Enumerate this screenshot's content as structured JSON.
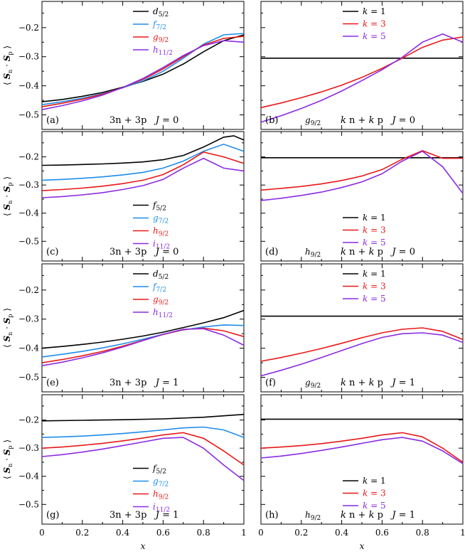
{
  "colors": {
    "black": "#000000",
    "blue": "#1f8ceb",
    "red": "#e81818",
    "purple": "#8a2be2"
  },
  "x_axis_label": "x",
  "y_axis_label": "⟨ S_n · S_p ⟩",
  "x_ticks": [
    "0",
    "0.2",
    "0.4",
    "0.6",
    "0.8",
    "1"
  ],
  "chart_data": [
    {
      "type": "line",
      "panel": "(a)",
      "annotation": "3n + 3p   J = 0",
      "ylim": [
        -0.55,
        -0.11
      ],
      "yticks": [
        "-0.2",
        "-0.3",
        "-0.4",
        "-0.5"
      ],
      "xlim": [
        0,
        1
      ],
      "legend": "top-right",
      "series": [
        {
          "name": "d5/2",
          "color": "black",
          "x": [
            0,
            0.1,
            0.2,
            0.3,
            0.4,
            0.5,
            0.6,
            0.7,
            0.8,
            0.9,
            1
          ],
          "y": [
            -0.455,
            -0.447,
            -0.436,
            -0.423,
            -0.405,
            -0.385,
            -0.36,
            -0.325,
            -0.283,
            -0.245,
            -0.225
          ]
        },
        {
          "name": "f7/2",
          "color": "blue",
          "x": [
            0,
            0.1,
            0.2,
            0.3,
            0.4,
            0.5,
            0.6,
            0.7,
            0.8,
            0.9,
            1
          ],
          "y": [
            -0.465,
            -0.455,
            -0.443,
            -0.427,
            -0.407,
            -0.383,
            -0.35,
            -0.305,
            -0.257,
            -0.225,
            -0.22
          ]
        },
        {
          "name": "g9/2",
          "color": "red",
          "x": [
            0,
            0.1,
            0.2,
            0.3,
            0.4,
            0.5,
            0.6,
            0.7,
            0.8,
            0.9,
            1
          ],
          "y": [
            -0.472,
            -0.46,
            -0.446,
            -0.429,
            -0.406,
            -0.378,
            -0.342,
            -0.3,
            -0.26,
            -0.237,
            -0.23
          ]
        },
        {
          "name": "h11/2",
          "color": "purple",
          "x": [
            0,
            0.1,
            0.2,
            0.3,
            0.4,
            0.5,
            0.6,
            0.7,
            0.8,
            0.9,
            1
          ],
          "y": [
            -0.482,
            -0.468,
            -0.452,
            -0.432,
            -0.406,
            -0.375,
            -0.337,
            -0.296,
            -0.262,
            -0.245,
            -0.25
          ]
        }
      ]
    },
    {
      "type": "line",
      "panel": "(b)",
      "orbital": "g9/2",
      "annotation": "k n + k p   J = 0",
      "ylim": [
        -0.55,
        -0.11
      ],
      "yticks": [
        "-0.2",
        "-0.3",
        "-0.4",
        "-0.5"
      ],
      "xlim": [
        0,
        1
      ],
      "legend": "top-right",
      "series": [
        {
          "name": "k = 1",
          "color": "black",
          "x": [
            0,
            0.2,
            0.4,
            0.6,
            0.8,
            1
          ],
          "y": [
            -0.305,
            -0.305,
            -0.305,
            -0.305,
            -0.305,
            -0.305
          ]
        },
        {
          "name": "k = 3",
          "color": "red",
          "x": [
            0,
            0.1,
            0.2,
            0.3,
            0.4,
            0.5,
            0.6,
            0.7,
            0.8,
            0.9,
            1
          ],
          "y": [
            -0.475,
            -0.459,
            -0.441,
            -0.421,
            -0.398,
            -0.371,
            -0.34,
            -0.305,
            -0.268,
            -0.243,
            -0.232
          ]
        },
        {
          "name": "k = 5",
          "color": "purple",
          "x": [
            0,
            0.1,
            0.2,
            0.3,
            0.4,
            0.5,
            0.6,
            0.7,
            0.8,
            0.9,
            1
          ],
          "y": [
            -0.525,
            -0.503,
            -0.478,
            -0.45,
            -0.418,
            -0.382,
            -0.345,
            -0.302,
            -0.25,
            -0.222,
            -0.25
          ]
        }
      ]
    },
    {
      "type": "line",
      "panel": "(c)",
      "annotation": "3n + 3p   J = 0",
      "ylim": [
        -0.57,
        -0.11
      ],
      "yticks": [
        "-0.2",
        "-0.3",
        "-0.4",
        "-0.5"
      ],
      "xlim": [
        0,
        1
      ],
      "legend": "bottom-center",
      "series": [
        {
          "name": "f5/2",
          "color": "black",
          "x": [
            0,
            0.1,
            0.2,
            0.3,
            0.4,
            0.5,
            0.6,
            0.7,
            0.8,
            0.9,
            0.95,
            1
          ],
          "y": [
            -0.23,
            -0.229,
            -0.227,
            -0.225,
            -0.222,
            -0.218,
            -0.21,
            -0.195,
            -0.165,
            -0.13,
            -0.125,
            -0.14
          ]
        },
        {
          "name": "g7/2",
          "color": "blue",
          "x": [
            0,
            0.1,
            0.2,
            0.3,
            0.4,
            0.5,
            0.6,
            0.7,
            0.8,
            0.9,
            1
          ],
          "y": [
            -0.283,
            -0.28,
            -0.276,
            -0.271,
            -0.264,
            -0.255,
            -0.24,
            -0.215,
            -0.18,
            -0.155,
            -0.18
          ]
        },
        {
          "name": "h9/2",
          "color": "red",
          "x": [
            0,
            0.1,
            0.2,
            0.3,
            0.4,
            0.5,
            0.6,
            0.7,
            0.8,
            0.9,
            1
          ],
          "y": [
            -0.32,
            -0.316,
            -0.311,
            -0.304,
            -0.295,
            -0.283,
            -0.263,
            -0.228,
            -0.183,
            -0.2,
            -0.223
          ]
        },
        {
          "name": "i11/2",
          "color": "purple",
          "x": [
            0,
            0.1,
            0.2,
            0.3,
            0.4,
            0.5,
            0.6,
            0.7,
            0.8,
            0.9,
            1
          ],
          "y": [
            -0.345,
            -0.341,
            -0.335,
            -0.327,
            -0.316,
            -0.302,
            -0.28,
            -0.24,
            -0.205,
            -0.24,
            -0.25
          ]
        }
      ]
    },
    {
      "type": "line",
      "panel": "(d)",
      "orbital": "h9/2",
      "annotation": "k n + k p   J = 0",
      "ylim": [
        -0.57,
        -0.11
      ],
      "yticks": [
        "-0.2",
        "-0.3",
        "-0.4",
        "-0.5"
      ],
      "xlim": [
        0,
        1
      ],
      "legend": "bottom-center",
      "series": [
        {
          "name": "k = 1",
          "color": "black",
          "x": [
            0,
            0.2,
            0.4,
            0.6,
            0.8,
            1
          ],
          "y": [
            -0.203,
            -0.203,
            -0.203,
            -0.203,
            -0.203,
            -0.203
          ]
        },
        {
          "name": "k = 3",
          "color": "red",
          "x": [
            0,
            0.1,
            0.2,
            0.3,
            0.4,
            0.5,
            0.6,
            0.7,
            0.8,
            0.9,
            1
          ],
          "y": [
            -0.318,
            -0.312,
            -0.305,
            -0.296,
            -0.284,
            -0.268,
            -0.245,
            -0.208,
            -0.178,
            -0.205,
            -0.205
          ]
        },
        {
          "name": "k = 5",
          "color": "purple",
          "x": [
            0,
            0.1,
            0.2,
            0.3,
            0.4,
            0.5,
            0.6,
            0.7,
            0.8,
            0.9,
            1
          ],
          "y": [
            -0.355,
            -0.347,
            -0.337,
            -0.325,
            -0.309,
            -0.289,
            -0.26,
            -0.215,
            -0.18,
            -0.235,
            -0.33
          ]
        }
      ]
    },
    {
      "type": "line",
      "panel": "(e)",
      "annotation": "3n + 3p   J = 1",
      "ylim": [
        -0.55,
        -0.11
      ],
      "yticks": [
        "-0.2",
        "-0.3",
        "-0.4",
        "-0.5"
      ],
      "xlim": [
        0,
        1
      ],
      "legend": "top-right",
      "series": [
        {
          "name": "d5/2",
          "color": "black",
          "x": [
            0,
            0.1,
            0.2,
            0.3,
            0.4,
            0.5,
            0.6,
            0.7,
            0.8,
            0.9,
            1
          ],
          "y": [
            -0.4,
            -0.394,
            -0.387,
            -0.379,
            -0.369,
            -0.358,
            -0.345,
            -0.329,
            -0.313,
            -0.295,
            -0.27
          ]
        },
        {
          "name": "f7/2",
          "color": "blue",
          "x": [
            0,
            0.1,
            0.2,
            0.3,
            0.4,
            0.5,
            0.6,
            0.7,
            0.8,
            0.9,
            1
          ],
          "y": [
            -0.43,
            -0.421,
            -0.411,
            -0.399,
            -0.385,
            -0.369,
            -0.352,
            -0.337,
            -0.327,
            -0.32,
            -0.322
          ]
        },
        {
          "name": "g9/2",
          "color": "red",
          "x": [
            0,
            0.1,
            0.2,
            0.3,
            0.4,
            0.5,
            0.6,
            0.7,
            0.8,
            0.9,
            1
          ],
          "y": [
            -0.45,
            -0.439,
            -0.426,
            -0.411,
            -0.393,
            -0.373,
            -0.353,
            -0.336,
            -0.331,
            -0.34,
            -0.36
          ]
        },
        {
          "name": "h11/2",
          "color": "purple",
          "x": [
            0,
            0.1,
            0.2,
            0.3,
            0.4,
            0.5,
            0.6,
            0.7,
            0.8,
            0.9,
            1
          ],
          "y": [
            -0.46,
            -0.448,
            -0.433,
            -0.416,
            -0.396,
            -0.374,
            -0.352,
            -0.335,
            -0.333,
            -0.355,
            -0.39
          ]
        }
      ]
    },
    {
      "type": "line",
      "panel": "(f)",
      "orbital": "g9/2",
      "annotation": "k n + k p   J = 1",
      "ylim": [
        -0.55,
        -0.11
      ],
      "yticks": [
        "-0.2",
        "-0.3",
        "-0.4",
        "-0.5"
      ],
      "xlim": [
        0,
        1
      ],
      "legend": "top-right",
      "series": [
        {
          "name": "k = 1",
          "color": "black",
          "x": [
            0,
            0.2,
            0.4,
            0.6,
            0.8,
            1
          ],
          "y": [
            -0.29,
            -0.29,
            -0.29,
            -0.29,
            -0.29,
            -0.29
          ]
        },
        {
          "name": "k = 3",
          "color": "red",
          "x": [
            0,
            0.1,
            0.2,
            0.3,
            0.4,
            0.5,
            0.6,
            0.7,
            0.8,
            0.9,
            1
          ],
          "y": [
            -0.445,
            -0.432,
            -0.417,
            -0.401,
            -0.383,
            -0.364,
            -0.347,
            -0.335,
            -0.33,
            -0.342,
            -0.37
          ]
        },
        {
          "name": "k = 5",
          "color": "purple",
          "x": [
            0,
            0.1,
            0.2,
            0.3,
            0.4,
            0.5,
            0.6,
            0.7,
            0.8,
            0.9,
            1
          ],
          "y": [
            -0.495,
            -0.476,
            -0.455,
            -0.432,
            -0.408,
            -0.384,
            -0.363,
            -0.35,
            -0.347,
            -0.355,
            -0.38
          ]
        }
      ]
    },
    {
      "type": "line",
      "panel": "(g)",
      "annotation": "3n + 3p   J = 1",
      "ylim": [
        -0.57,
        -0.11
      ],
      "yticks": [
        "-0.2",
        "-0.3",
        "-0.4",
        "-0.5"
      ],
      "xlim": [
        0,
        1
      ],
      "legend": "bottom-center",
      "series": [
        {
          "name": "f5/2",
          "color": "black",
          "x": [
            0,
            0.2,
            0.4,
            0.6,
            0.8,
            1
          ],
          "y": [
            -0.203,
            -0.201,
            -0.199,
            -0.196,
            -0.19,
            -0.18
          ]
        },
        {
          "name": "g7/2",
          "color": "blue",
          "x": [
            0,
            0.1,
            0.2,
            0.3,
            0.4,
            0.5,
            0.6,
            0.7,
            0.8,
            0.9,
            1
          ],
          "y": [
            -0.262,
            -0.26,
            -0.257,
            -0.253,
            -0.248,
            -0.242,
            -0.235,
            -0.228,
            -0.225,
            -0.235,
            -0.262
          ]
        },
        {
          "name": "h9/2",
          "color": "red",
          "x": [
            0,
            0.1,
            0.2,
            0.3,
            0.4,
            0.5,
            0.6,
            0.7,
            0.8,
            0.9,
            1
          ],
          "y": [
            -0.3,
            -0.296,
            -0.29,
            -0.283,
            -0.274,
            -0.264,
            -0.253,
            -0.245,
            -0.265,
            -0.31,
            -0.36
          ]
        },
        {
          "name": "i11/2",
          "color": "purple",
          "x": [
            0,
            0.1,
            0.2,
            0.3,
            0.4,
            0.5,
            0.6,
            0.7,
            0.8,
            0.9,
            1
          ],
          "y": [
            -0.33,
            -0.323,
            -0.314,
            -0.303,
            -0.291,
            -0.278,
            -0.265,
            -0.262,
            -0.3,
            -0.36,
            -0.415
          ]
        }
      ]
    },
    {
      "type": "line",
      "panel": "(h)",
      "orbital": "h9/2",
      "annotation": "k n + k p   J = 1",
      "ylim": [
        -0.57,
        -0.11
      ],
      "yticks": [
        "-0.2",
        "-0.3",
        "-0.4",
        "-0.5"
      ],
      "xlim": [
        0,
        1
      ],
      "legend": "bottom-center",
      "series": [
        {
          "name": "k = 1",
          "color": "black",
          "x": [
            0,
            0.2,
            0.4,
            0.6,
            0.8,
            1
          ],
          "y": [
            -0.197,
            -0.197,
            -0.197,
            -0.197,
            -0.197,
            -0.197
          ]
        },
        {
          "name": "k = 3",
          "color": "red",
          "x": [
            0,
            0.1,
            0.2,
            0.3,
            0.4,
            0.5,
            0.6,
            0.7,
            0.8,
            0.9,
            1
          ],
          "y": [
            -0.3,
            -0.296,
            -0.291,
            -0.284,
            -0.275,
            -0.265,
            -0.253,
            -0.245,
            -0.26,
            -0.3,
            -0.35
          ]
        },
        {
          "name": "k = 5",
          "color": "purple",
          "x": [
            0,
            0.1,
            0.2,
            0.3,
            0.4,
            0.5,
            0.6,
            0.7,
            0.8,
            0.9,
            1
          ],
          "y": [
            -0.335,
            -0.328,
            -0.319,
            -0.308,
            -0.296,
            -0.283,
            -0.27,
            -0.262,
            -0.275,
            -0.31,
            -0.355
          ]
        }
      ]
    }
  ]
}
